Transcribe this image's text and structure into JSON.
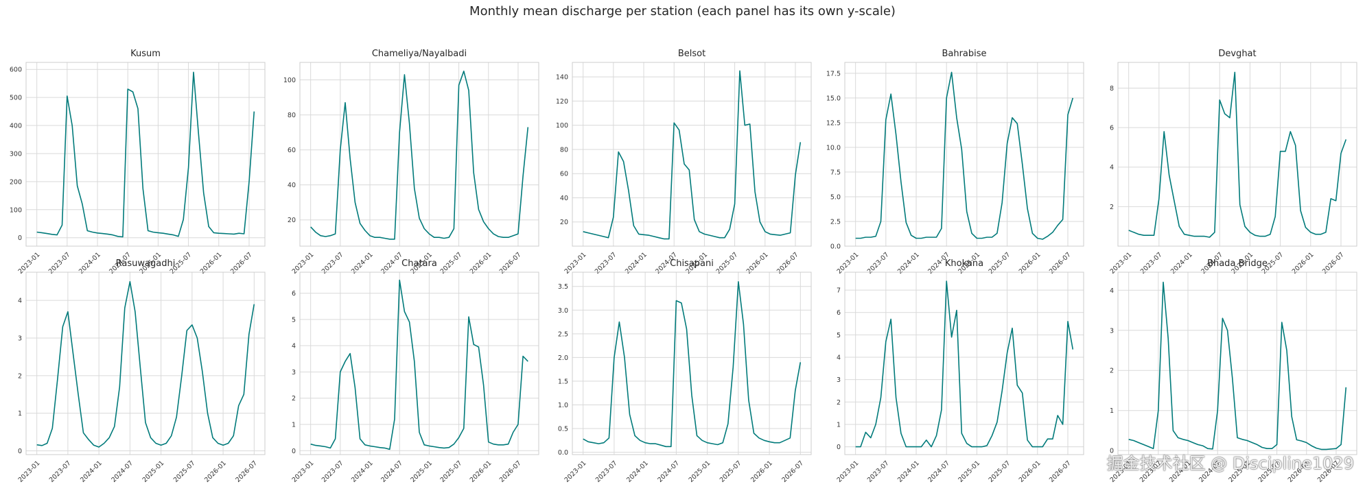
{
  "figure": {
    "title": "Monthly mean discharge per station (each panel has its own y-scale)",
    "line_color": "#007a7a",
    "watermark": "掘金技术社区 @ Discipline1029"
  },
  "chart_data": [
    {
      "type": "line",
      "title": "Kusum",
      "xticks": [
        "2023-01",
        "2023-07",
        "2024-01",
        "2024-07",
        "2025-01",
        "2025-07",
        "2026-01",
        "2026-07"
      ],
      "yticks": [
        0,
        100,
        200,
        300,
        400,
        500,
        600
      ],
      "ylim": [
        -30,
        625
      ],
      "grid": true,
      "values": [
        20,
        18,
        15,
        12,
        10,
        45,
        505,
        400,
        185,
        120,
        25,
        20,
        17,
        15,
        13,
        10,
        5,
        3,
        530,
        520,
        460,
        175,
        25,
        20,
        18,
        16,
        13,
        10,
        5,
        65,
        250,
        590,
        370,
        160,
        40,
        18,
        16,
        15,
        14,
        13,
        16,
        14,
        200,
        450
      ]
    },
    {
      "type": "line",
      "title": "Chameliya/Nayalbadi",
      "xticks": [
        "2023-01",
        "2023-07",
        "2024-01",
        "2024-07",
        "2025-01",
        "2025-07",
        "2026-01",
        "2026-07"
      ],
      "yticks": [
        20,
        40,
        60,
        80,
        100
      ],
      "ylim": [
        5,
        110
      ],
      "grid": true,
      "values": [
        16,
        13,
        11,
        10.5,
        11,
        12,
        60,
        87,
        55,
        30,
        18,
        14,
        11,
        10,
        10,
        9.5,
        9,
        9,
        70,
        103,
        75,
        38,
        21,
        15,
        12,
        10,
        10,
        9.5,
        10,
        15,
        97,
        105,
        94,
        47,
        26,
        19,
        15,
        12,
        10.5,
        10,
        10,
        11,
        12,
        45,
        73
      ]
    },
    {
      "type": "line",
      "title": "Belsot",
      "xticks": [
        "2023-01",
        "2023-07",
        "2024-01",
        "2024-07",
        "2025-01",
        "2025-07",
        "2026-01",
        "2026-07"
      ],
      "yticks": [
        20,
        40,
        60,
        80,
        100,
        120,
        140
      ],
      "ylim": [
        0,
        152
      ],
      "grid": true,
      "values": [
        12,
        11,
        10,
        9,
        8,
        7,
        24,
        78,
        70,
        46,
        17,
        10,
        9.5,
        9,
        8,
        7,
        6,
        6,
        102,
        96,
        68,
        63,
        22,
        12,
        10,
        9,
        8,
        7,
        7,
        14,
        35,
        145,
        100,
        101,
        45,
        20,
        12,
        10,
        9.5,
        9,
        10,
        11,
        59,
        86
      ]
    },
    {
      "type": "line",
      "title": "Bahrabise",
      "xticks": [
        "2023-01",
        "2023-07",
        "2024-01",
        "2024-07",
        "2025-01",
        "2025-07",
        "2026-01",
        "2026-07"
      ],
      "yticks": [
        0.0,
        2.5,
        5.0,
        7.5,
        10.0,
        12.5,
        15.0,
        17.5
      ],
      "ylim": [
        0,
        18.6
      ],
      "grid": true,
      "values": [
        0.8,
        0.8,
        0.9,
        0.9,
        1.0,
        2.5,
        12.8,
        15.4,
        11.3,
        6.5,
        2.4,
        1.1,
        0.8,
        0.8,
        0.9,
        0.9,
        0.9,
        1.8,
        15.0,
        17.6,
        13.0,
        9.8,
        3.5,
        1.3,
        0.8,
        0.8,
        0.9,
        0.9,
        1.3,
        4.4,
        10.4,
        13.0,
        12.4,
        8.3,
        3.8,
        1.3,
        0.8,
        0.7,
        1.0,
        1.4,
        2.1,
        2.7,
        13.3,
        15.0
      ]
    },
    {
      "type": "line",
      "title": "Devghat",
      "xticks": [
        "2023-01",
        "2023-07",
        "2024-01",
        "2024-07",
        "2025-01",
        "2025-07",
        "2026-01",
        "2026-07"
      ],
      "yticks": [
        2,
        4,
        6,
        8
      ],
      "ylim": [
        0,
        9.3
      ],
      "grid": true,
      "values": [
        0.8,
        0.7,
        0.6,
        0.55,
        0.55,
        0.55,
        2.4,
        5.8,
        3.6,
        2.3,
        1.0,
        0.6,
        0.55,
        0.5,
        0.5,
        0.5,
        0.45,
        0.7,
        7.4,
        6.7,
        6.5,
        8.8,
        2.1,
        1.0,
        0.7,
        0.55,
        0.5,
        0.5,
        0.6,
        1.5,
        4.8,
        4.8,
        5.8,
        5.1,
        1.8,
        0.95,
        0.7,
        0.6,
        0.6,
        0.7,
        2.4,
        2.3,
        4.7,
        5.4
      ]
    },
    {
      "type": "line",
      "title": "Rasuwagadhi",
      "xticks": [
        "2023-01",
        "2023-07",
        "2024-01",
        "2024-07",
        "2025-01",
        "2025-07",
        "2026-01",
        "2026-07"
      ],
      "yticks": [
        0,
        1,
        2,
        3,
        4
      ],
      "ylim": [
        -0.1,
        4.75
      ],
      "grid": true,
      "values": [
        0.16,
        0.14,
        0.2,
        0.6,
        1.9,
        3.3,
        3.7,
        2.6,
        1.5,
        0.48,
        0.3,
        0.15,
        0.1,
        0.2,
        0.35,
        0.65,
        1.7,
        3.8,
        4.5,
        3.7,
        2.2,
        0.75,
        0.35,
        0.2,
        0.15,
        0.2,
        0.4,
        0.9,
        2.0,
        3.2,
        3.35,
        3.0,
        2.1,
        1.0,
        0.35,
        0.2,
        0.15,
        0.2,
        0.4,
        1.2,
        1.5,
        3.1,
        3.9
      ]
    },
    {
      "type": "line",
      "title": "Chatara",
      "xticks": [
        "2023-01",
        "2023-07",
        "2024-01",
        "2024-07",
        "2025-01",
        "2025-07",
        "2026-01",
        "2026-07"
      ],
      "yticks": [
        0,
        1,
        2,
        3,
        4,
        5,
        6
      ],
      "ylim": [
        -0.15,
        6.8
      ],
      "grid": true,
      "values": [
        0.25,
        0.2,
        0.18,
        0.15,
        0.1,
        0.45,
        3.0,
        3.4,
        3.7,
        2.4,
        0.45,
        0.22,
        0.18,
        0.15,
        0.12,
        0.1,
        0.05,
        1.2,
        6.5,
        5.3,
        4.9,
        3.4,
        0.7,
        0.22,
        0.18,
        0.15,
        0.12,
        0.1,
        0.12,
        0.25,
        0.5,
        0.85,
        5.1,
        4.05,
        3.95,
        2.5,
        0.33,
        0.25,
        0.22,
        0.22,
        0.25,
        0.7,
        1.0,
        3.6,
        3.4
      ]
    },
    {
      "type": "line",
      "title": "Chisapani",
      "xticks": [
        "2023-01",
        "2023-07",
        "2024-01",
        "2024-07",
        "2025-01",
        "2025-07",
        "2026-01",
        "2026-07"
      ],
      "yticks": [
        0.0,
        0.5,
        1.0,
        1.5,
        2.0,
        2.5,
        3.0,
        3.5
      ],
      "ylim": [
        -0.05,
        3.8
      ],
      "grid": true,
      "values": [
        0.28,
        0.22,
        0.2,
        0.18,
        0.2,
        0.3,
        2.0,
        2.75,
        2.0,
        0.8,
        0.35,
        0.25,
        0.2,
        0.18,
        0.18,
        0.15,
        0.12,
        0.12,
        3.2,
        3.15,
        2.6,
        1.2,
        0.35,
        0.25,
        0.2,
        0.18,
        0.16,
        0.2,
        0.6,
        1.8,
        3.6,
        2.7,
        1.1,
        0.4,
        0.3,
        0.25,
        0.22,
        0.2,
        0.2,
        0.25,
        0.3,
        1.3,
        1.9
      ]
    },
    {
      "type": "line",
      "title": "Khokana",
      "xticks": [
        "2023-01",
        "2023-07",
        "2024-01",
        "2024-07",
        "2025-01",
        "2025-07",
        "2026-01",
        "2026-07"
      ],
      "yticks": [
        0,
        1,
        2,
        3,
        4,
        5,
        6,
        7
      ],
      "ylim": [
        -0.35,
        7.8
      ],
      "grid": true,
      "values": [
        0,
        0,
        0.65,
        0.4,
        1.0,
        2.2,
        4.7,
        5.7,
        2.2,
        0.6,
        0,
        0,
        0,
        0,
        0.3,
        0,
        0.5,
        1.65,
        7.4,
        4.9,
        6.1,
        0.6,
        0.15,
        0,
        0,
        0,
        0.05,
        0.5,
        1.1,
        2.5,
        4.2,
        5.3,
        2.75,
        2.4,
        0.3,
        0,
        0,
        0,
        0.35,
        0.35,
        1.4,
        1.0,
        5.6,
        4.35
      ]
    },
    {
      "type": "line",
      "title": "Bhada Bridge",
      "xticks": [
        "2023-01",
        "2023-07",
        "2024-01",
        "2024-07",
        "2025-01",
        "2025-07",
        "2026-01",
        "2026-07"
      ],
      "yticks": [
        0,
        1,
        2,
        3,
        4
      ],
      "ylim": [
        -0.1,
        4.45
      ],
      "grid": true,
      "values": [
        0.28,
        0.25,
        0.2,
        0.15,
        0.1,
        0.05,
        1.0,
        4.2,
        2.8,
        0.5,
        0.32,
        0.28,
        0.25,
        0.2,
        0.15,
        0.12,
        0.05,
        0.04,
        1.0,
        3.3,
        3.0,
        1.8,
        0.32,
        0.28,
        0.25,
        0.2,
        0.15,
        0.08,
        0.05,
        0.05,
        0.15,
        3.2,
        2.5,
        0.85,
        0.27,
        0.24,
        0.2,
        0.12,
        0.06,
        0.03,
        0.03,
        0.04,
        0.05,
        0.15,
        1.58
      ]
    }
  ]
}
